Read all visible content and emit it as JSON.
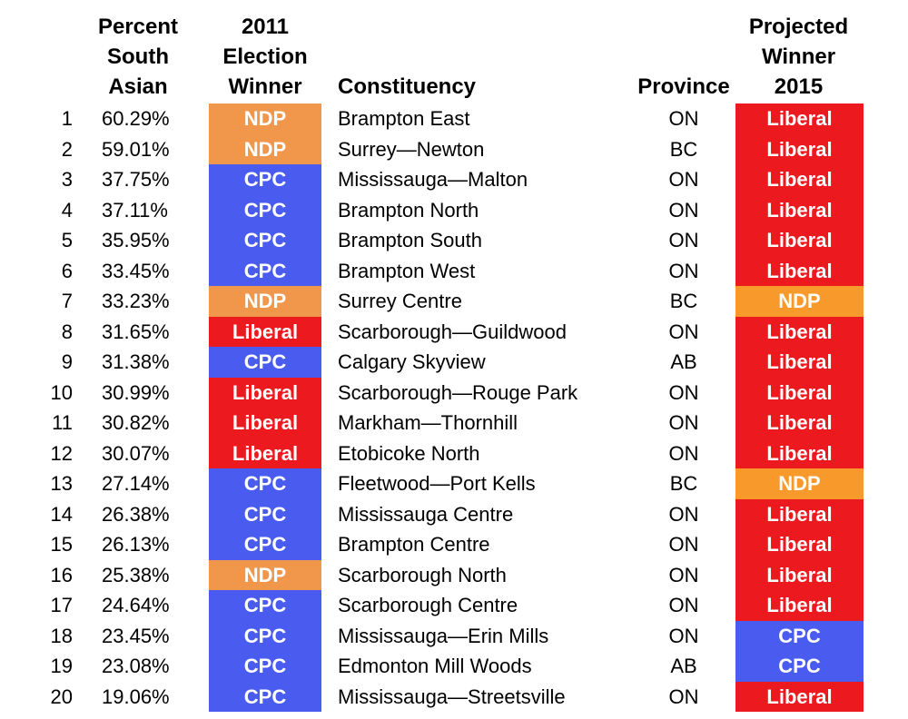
{
  "headers": {
    "percent_south_asian": "Percent\nSouth\nAsian",
    "winner_2011": "2011\nElection\nWinner",
    "constituency": "Constituency",
    "province": "Province",
    "projected_winner": "Projected\nWinner\n2015"
  },
  "party_colors": {
    "NDP": "#f0974b",
    "CPC": "#4a5cf0",
    "Liberal": "#ec1a1f"
  },
  "rows": [
    {
      "rank": "1",
      "pct": "60.29%",
      "winner_2011": "NDP",
      "constituency": "Brampton East",
      "province": "ON",
      "projected": "Liberal"
    },
    {
      "rank": "2",
      "pct": "59.01%",
      "winner_2011": "NDP",
      "constituency": "Surrey—Newton",
      "province": "BC",
      "projected": "Liberal"
    },
    {
      "rank": "3",
      "pct": "37.75%",
      "winner_2011": "CPC",
      "constituency": "Mississauga—Malton",
      "province": "ON",
      "projected": "Liberal"
    },
    {
      "rank": "4",
      "pct": "37.11%",
      "winner_2011": "CPC",
      "constituency": "Brampton North",
      "province": "ON",
      "projected": "Liberal"
    },
    {
      "rank": "5",
      "pct": "35.95%",
      "winner_2011": "CPC",
      "constituency": "Brampton South",
      "province": "ON",
      "projected": "Liberal"
    },
    {
      "rank": "6",
      "pct": "33.45%",
      "winner_2011": "CPC",
      "constituency": "Brampton West",
      "province": "ON",
      "projected": "Liberal"
    },
    {
      "rank": "7",
      "pct": "33.23%",
      "winner_2011": "NDP",
      "constituency": "Surrey Centre",
      "province": "BC",
      "projected": "NDP"
    },
    {
      "rank": "8",
      "pct": "31.65%",
      "winner_2011": "Liberal",
      "constituency": "Scarborough—Guildwood",
      "province": "ON",
      "projected": "Liberal"
    },
    {
      "rank": "9",
      "pct": "31.38%",
      "winner_2011": "CPC",
      "constituency": "Calgary Skyview",
      "province": "AB",
      "projected": "Liberal"
    },
    {
      "rank": "10",
      "pct": "30.99%",
      "winner_2011": "Liberal",
      "constituency": "Scarborough—Rouge Park",
      "province": "ON",
      "projected": "Liberal"
    },
    {
      "rank": "11",
      "pct": "30.82%",
      "winner_2011": "Liberal",
      "constituency": "Markham—Thornhill",
      "province": "ON",
      "projected": "Liberal"
    },
    {
      "rank": "12",
      "pct": "30.07%",
      "winner_2011": "Liberal",
      "constituency": "Etobicoke North",
      "province": "ON",
      "projected": "Liberal"
    },
    {
      "rank": "13",
      "pct": "27.14%",
      "winner_2011": "CPC",
      "constituency": "Fleetwood—Port Kells",
      "province": "BC",
      "projected": "NDP"
    },
    {
      "rank": "14",
      "pct": "26.38%",
      "winner_2011": "CPC",
      "constituency": "Mississauga Centre",
      "province": "ON",
      "projected": "Liberal"
    },
    {
      "rank": "15",
      "pct": "26.13%",
      "winner_2011": "CPC",
      "constituency": "Brampton Centre",
      "province": "ON",
      "projected": "Liberal"
    },
    {
      "rank": "16",
      "pct": "25.38%",
      "winner_2011": "NDP",
      "constituency": "Scarborough North",
      "province": "ON",
      "projected": "Liberal"
    },
    {
      "rank": "17",
      "pct": "24.64%",
      "winner_2011": "CPC",
      "constituency": "Scarborough Centre",
      "province": "ON",
      "projected": "Liberal"
    },
    {
      "rank": "18",
      "pct": "23.45%",
      "winner_2011": "CPC",
      "constituency": "Mississauga—Erin Mills",
      "province": "ON",
      "projected": "CPC"
    },
    {
      "rank": "19",
      "pct": "23.08%",
      "winner_2011": "CPC",
      "constituency": "Edmonton Mill Woods",
      "province": "AB",
      "projected": "CPC"
    },
    {
      "rank": "20",
      "pct": "19.06%",
      "winner_2011": "CPC",
      "constituency": "Mississauga—Streetsville",
      "province": "ON",
      "projected": "Liberal"
    }
  ]
}
